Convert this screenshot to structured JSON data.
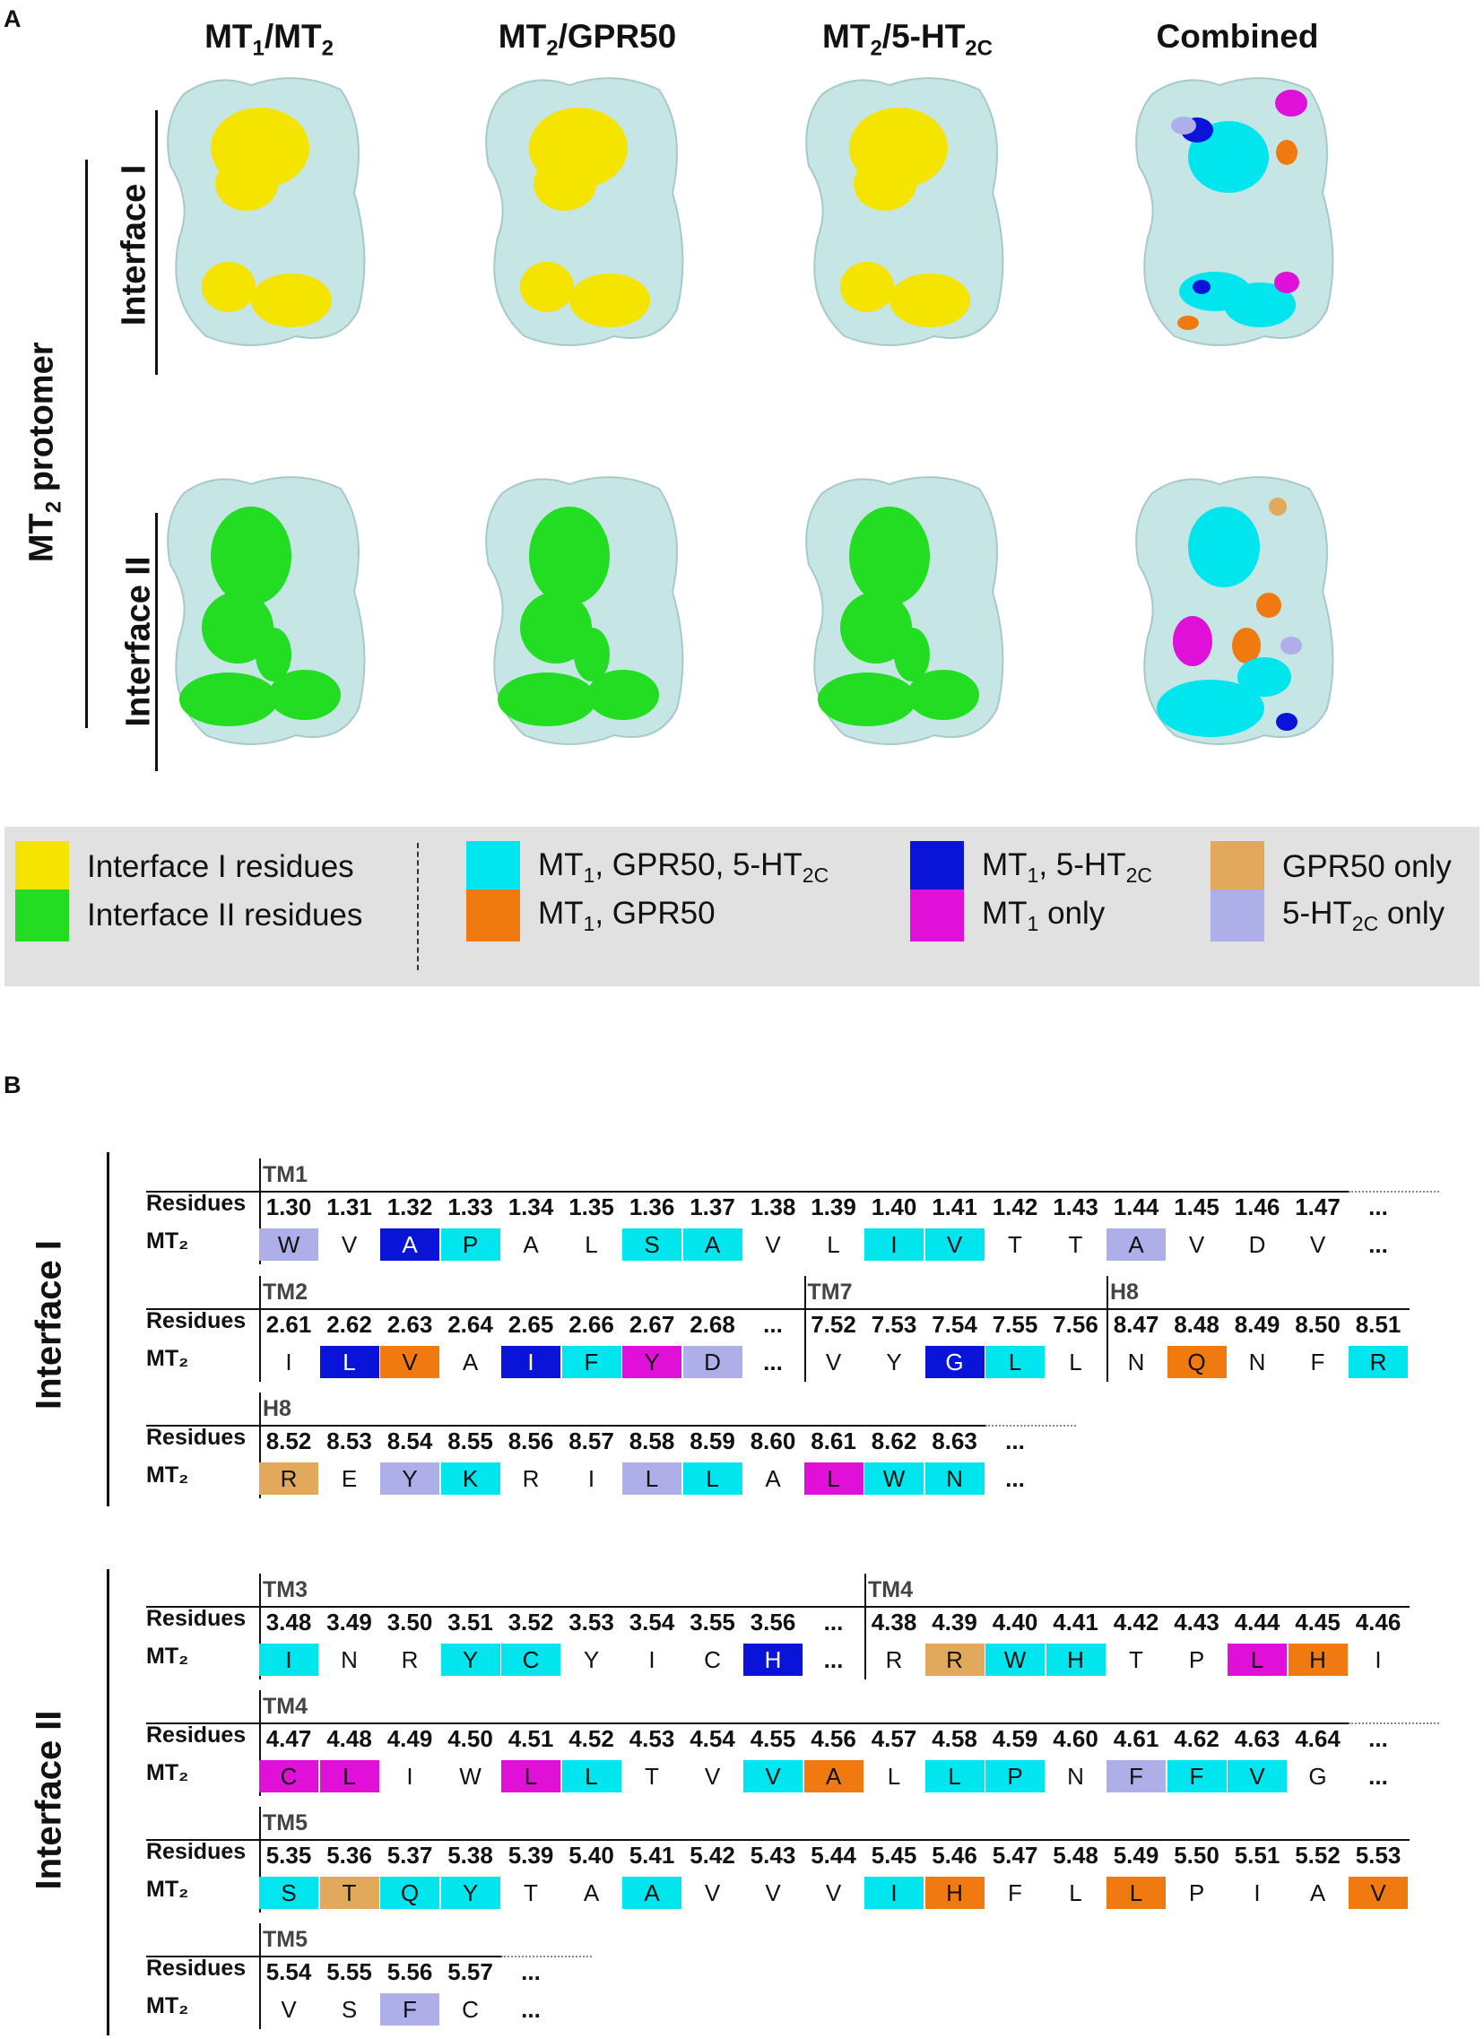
{
  "panel_a_letter": "A",
  "panel_b_letter": "B",
  "columns": [
    {
      "main": "MT",
      "sub": "1",
      "rest": "/MT",
      "sub2": "2"
    },
    {
      "main": "MT",
      "sub": "2",
      "rest": "/GPR50",
      "sub2": ""
    },
    {
      "main": "MT",
      "sub": "2",
      "rest": "/5-HT",
      "sub2": "2C"
    },
    {
      "main": "Combined",
      "sub": "",
      "rest": "",
      "sub2": ""
    }
  ],
  "protomer_label": {
    "main": "MT",
    "sub": "2",
    "rest": " protomer"
  },
  "interface_labels": [
    "Interface I",
    "Interface II"
  ],
  "colors": {
    "surface": "#c6e5e5",
    "interface_I": "#f5e400",
    "interface_II": "#22dd22",
    "all_three": "#00e5ee",
    "mt1_5ht2c": "#0a14d8",
    "gpr50_only": "#e2a85c",
    "mt1_gpr50": "#f07a10",
    "mt1_only": "#e010d8",
    "ht2c_only": "#aeaee8"
  },
  "legend": [
    {
      "key": "interface_I",
      "text": "Interface I residues",
      "sub": "",
      "tail": ""
    },
    {
      "key": "interface_II",
      "text": "Interface II residues",
      "sub": "",
      "tail": ""
    },
    {
      "key": "all_three",
      "text": "MT",
      "sub": "1",
      "tail": ", GPR50, 5-HT",
      "sub2": "2C"
    },
    {
      "key": "mt1_gpr50",
      "text": "MT",
      "sub": "1",
      "tail": ", GPR50",
      "sub2": ""
    },
    {
      "key": "mt1_5ht2c",
      "text": "MT",
      "sub": "1",
      "tail": ", 5-HT",
      "sub2": "2C"
    },
    {
      "key": "mt1_only",
      "text": "MT",
      "sub": "1",
      "tail": " only",
      "sub2": ""
    },
    {
      "key": "gpr50_only",
      "text": "GPR50 only",
      "sub": "",
      "tail": "",
      "sub2": ""
    },
    {
      "key": "ht2c_only",
      "text": "5-HT",
      "sub": "2C",
      "tail": " only",
      "sub2": ""
    }
  ],
  "table_row_labels": {
    "residues": "Residues",
    "seq": "MT₂"
  },
  "tables": {
    "interface_I": [
      {
        "segments": [
          {
            "label": "TM1",
            "start": 0,
            "end": 17
          }
        ],
        "cells": [
          [
            "1.30",
            "W",
            "ht2c_only"
          ],
          [
            "1.31",
            "V",
            ""
          ],
          [
            "1.32",
            "A",
            "mt1_5ht2c"
          ],
          [
            "1.33",
            "P",
            "all_three"
          ],
          [
            "1.34",
            "A",
            ""
          ],
          [
            "1.35",
            "L",
            ""
          ],
          [
            "1.36",
            "S",
            "all_three"
          ],
          [
            "1.37",
            "A",
            "all_three"
          ],
          [
            "1.38",
            "V",
            ""
          ],
          [
            "1.39",
            "L",
            ""
          ],
          [
            "1.40",
            "I",
            "all_three"
          ],
          [
            "1.41",
            "V",
            "all_three"
          ],
          [
            "1.42",
            "T",
            ""
          ],
          [
            "1.43",
            "T",
            ""
          ],
          [
            "1.44",
            "A",
            "ht2c_only"
          ],
          [
            "1.45",
            "V",
            ""
          ],
          [
            "1.46",
            "D",
            ""
          ],
          [
            "1.47",
            "V",
            ""
          ],
          [
            "...",
            "...",
            ""
          ]
        ]
      },
      {
        "segments": [
          {
            "label": "TM2",
            "start": 0,
            "end": 8
          },
          {
            "label": "TM7",
            "start": 9,
            "end": 13
          },
          {
            "label": "H8",
            "start": 14,
            "end": 18
          }
        ],
        "cells": [
          [
            "2.61",
            "I",
            ""
          ],
          [
            "2.62",
            "L",
            "mt1_5ht2c"
          ],
          [
            "2.63",
            "V",
            "mt1_gpr50"
          ],
          [
            "2.64",
            "A",
            ""
          ],
          [
            "2.65",
            "I",
            "mt1_5ht2c"
          ],
          [
            "2.66",
            "F",
            "all_three"
          ],
          [
            "2.67",
            "Y",
            "mt1_only"
          ],
          [
            "2.68",
            "D",
            "ht2c_only"
          ],
          [
            "...",
            "...",
            ""
          ],
          [
            "7.52",
            "V",
            ""
          ],
          [
            "7.53",
            "Y",
            ""
          ],
          [
            "7.54",
            "G",
            "mt1_5ht2c"
          ],
          [
            "7.55",
            "L",
            "all_three"
          ],
          [
            "7.56",
            "L",
            ""
          ],
          [
            "8.47",
            "N",
            ""
          ],
          [
            "8.48",
            "Q",
            "mt1_gpr50"
          ],
          [
            "8.49",
            "N",
            ""
          ],
          [
            "8.50",
            "F",
            ""
          ],
          [
            "8.51",
            "R",
            "all_three"
          ]
        ]
      },
      {
        "segments": [
          {
            "label": "H8",
            "start": 0,
            "end": 12
          }
        ],
        "cells": [
          [
            "8.52",
            "R",
            "gpr50_only"
          ],
          [
            "8.53",
            "E",
            ""
          ],
          [
            "8.54",
            "Y",
            "ht2c_only"
          ],
          [
            "8.55",
            "K",
            "all_three"
          ],
          [
            "8.56",
            "R",
            ""
          ],
          [
            "8.57",
            "I",
            ""
          ],
          [
            "8.58",
            "L",
            "ht2c_only"
          ],
          [
            "8.59",
            "L",
            "all_three"
          ],
          [
            "8.60",
            "A",
            ""
          ],
          [
            "8.61",
            "L",
            "mt1_only"
          ],
          [
            "8.62",
            "W",
            "all_three"
          ],
          [
            "8.63",
            "N",
            "all_three"
          ],
          [
            "...",
            "...",
            ""
          ]
        ]
      }
    ],
    "interface_II": [
      {
        "segments": [
          {
            "label": "TM3",
            "start": 0,
            "end": 9
          },
          {
            "label": "TM4",
            "start": 10,
            "end": 18
          }
        ],
        "cells": [
          [
            "3.48",
            "I",
            "all_three"
          ],
          [
            "3.49",
            "N",
            ""
          ],
          [
            "3.50",
            "R",
            ""
          ],
          [
            "3.51",
            "Y",
            "all_three"
          ],
          [
            "3.52",
            "C",
            "all_three"
          ],
          [
            "3.53",
            "Y",
            ""
          ],
          [
            "3.54",
            "I",
            ""
          ],
          [
            "3.55",
            "C",
            ""
          ],
          [
            "3.56",
            "H",
            "mt1_5ht2c"
          ],
          [
            "...",
            "...",
            ""
          ],
          [
            "4.38",
            "R",
            ""
          ],
          [
            "4.39",
            "R",
            "gpr50_only"
          ],
          [
            "4.40",
            "W",
            "all_three"
          ],
          [
            "4.41",
            "H",
            "all_three"
          ],
          [
            "4.42",
            "T",
            ""
          ],
          [
            "4.43",
            "P",
            ""
          ],
          [
            "4.44",
            "L",
            "mt1_only"
          ],
          [
            "4.45",
            "H",
            "mt1_gpr50"
          ],
          [
            "4.46",
            "I",
            ""
          ]
        ]
      },
      {
        "segments": [
          {
            "label": "TM4",
            "start": 0,
            "end": 17
          }
        ],
        "cells": [
          [
            "4.47",
            "C",
            "mt1_only"
          ],
          [
            "4.48",
            "L",
            "mt1_only"
          ],
          [
            "4.49",
            "I",
            ""
          ],
          [
            "4.50",
            "W",
            ""
          ],
          [
            "4.51",
            "L",
            "mt1_only"
          ],
          [
            "4.52",
            "L",
            "all_three"
          ],
          [
            "4.53",
            "T",
            ""
          ],
          [
            "4.54",
            "V",
            ""
          ],
          [
            "4.55",
            "V",
            "all_three"
          ],
          [
            "4.56",
            "A",
            "mt1_gpr50"
          ],
          [
            "4.57",
            "L",
            ""
          ],
          [
            "4.58",
            "L",
            "all_three"
          ],
          [
            "4.59",
            "P",
            "all_three"
          ],
          [
            "4.60",
            "N",
            ""
          ],
          [
            "4.61",
            "F",
            "ht2c_only"
          ],
          [
            "4.62",
            "F",
            "all_three"
          ],
          [
            "4.63",
            "V",
            "all_three"
          ],
          [
            "4.64",
            "G",
            ""
          ],
          [
            "...",
            "...",
            ""
          ]
        ]
      },
      {
        "segments": [
          {
            "label": "TM5",
            "start": 0,
            "end": 18
          }
        ],
        "cells": [
          [
            "5.35",
            "S",
            "all_three"
          ],
          [
            "5.36",
            "T",
            "gpr50_only"
          ],
          [
            "5.37",
            "Q",
            "all_three"
          ],
          [
            "5.38",
            "Y",
            "all_three"
          ],
          [
            "5.39",
            "T",
            ""
          ],
          [
            "5.40",
            "A",
            ""
          ],
          [
            "5.41",
            "A",
            "all_three"
          ],
          [
            "5.42",
            "V",
            ""
          ],
          [
            "5.43",
            "V",
            ""
          ],
          [
            "5.44",
            "V",
            ""
          ],
          [
            "5.45",
            "I",
            "all_three"
          ],
          [
            "5.46",
            "H",
            "mt1_gpr50"
          ],
          [
            "5.47",
            "F",
            ""
          ],
          [
            "5.48",
            "L",
            ""
          ],
          [
            "5.49",
            "L",
            "mt1_gpr50"
          ],
          [
            "5.50",
            "P",
            ""
          ],
          [
            "5.51",
            "I",
            ""
          ],
          [
            "5.52",
            "A",
            ""
          ],
          [
            "5.53",
            "V",
            "mt1_gpr50"
          ]
        ]
      },
      {
        "segments": [
          {
            "label": "TM5",
            "start": 0,
            "end": 3
          }
        ],
        "cells": [
          [
            "5.54",
            "V",
            ""
          ],
          [
            "5.55",
            "S",
            ""
          ],
          [
            "5.56",
            "F",
            "ht2c_only"
          ],
          [
            "5.57",
            "C",
            ""
          ],
          [
            "...",
            "...",
            ""
          ]
        ]
      }
    ]
  }
}
